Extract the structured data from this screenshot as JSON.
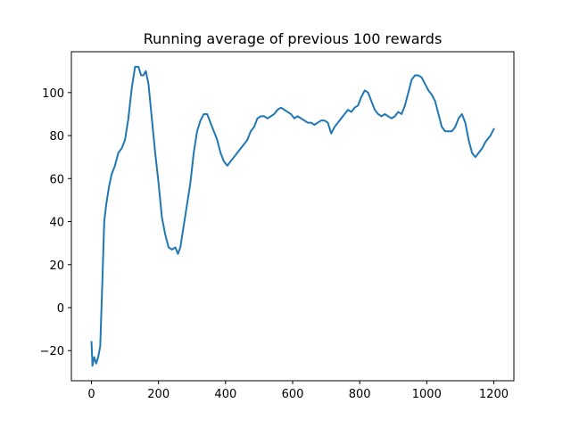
{
  "chart_data": {
    "type": "line",
    "title": "Running average of previous 100 rewards",
    "xlabel": "",
    "ylabel": "",
    "xlim": [
      -60,
      1260
    ],
    "ylim": [
      -34,
      119
    ],
    "xticks": [
      0,
      200,
      400,
      600,
      800,
      1000,
      1200
    ],
    "yticks": [
      -20,
      0,
      20,
      40,
      60,
      80,
      100
    ],
    "xtick_labels": [
      "0",
      "200",
      "400",
      "600",
      "800",
      "1000",
      "1200"
    ],
    "ytick_labels": [
      "−20",
      "0",
      "20",
      "40",
      "60",
      "80",
      "100"
    ],
    "grid": false,
    "legend": "none",
    "line_color": "#1f77b4",
    "series": [
      {
        "values": [
          [
            0,
            -16
          ],
          [
            3,
            -27
          ],
          [
            8,
            -23
          ],
          [
            14,
            -26
          ],
          [
            20,
            -23
          ],
          [
            26,
            -18
          ],
          [
            32,
            10
          ],
          [
            38,
            40
          ],
          [
            44,
            48
          ],
          [
            52,
            56
          ],
          [
            60,
            62
          ],
          [
            70,
            66
          ],
          [
            80,
            72
          ],
          [
            90,
            74
          ],
          [
            100,
            78
          ],
          [
            110,
            88
          ],
          [
            120,
            102
          ],
          [
            130,
            112
          ],
          [
            140,
            112
          ],
          [
            148,
            108
          ],
          [
            155,
            108
          ],
          [
            162,
            110
          ],
          [
            170,
            104
          ],
          [
            180,
            88
          ],
          [
            190,
            72
          ],
          [
            200,
            58
          ],
          [
            210,
            42
          ],
          [
            220,
            34
          ],
          [
            230,
            28
          ],
          [
            240,
            27
          ],
          [
            250,
            28
          ],
          [
            258,
            25
          ],
          [
            265,
            28
          ],
          [
            275,
            38
          ],
          [
            285,
            48
          ],
          [
            295,
            58
          ],
          [
            305,
            72
          ],
          [
            315,
            82
          ],
          [
            325,
            87
          ],
          [
            335,
            90
          ],
          [
            345,
            90
          ],
          [
            355,
            86
          ],
          [
            365,
            82
          ],
          [
            375,
            78
          ],
          [
            385,
            72
          ],
          [
            395,
            68
          ],
          [
            405,
            66
          ],
          [
            415,
            68
          ],
          [
            425,
            70
          ],
          [
            435,
            72
          ],
          [
            445,
            74
          ],
          [
            455,
            76
          ],
          [
            465,
            78
          ],
          [
            475,
            82
          ],
          [
            485,
            84
          ],
          [
            495,
            88
          ],
          [
            505,
            89
          ],
          [
            515,
            89
          ],
          [
            525,
            88
          ],
          [
            535,
            89
          ],
          [
            545,
            90
          ],
          [
            555,
            92
          ],
          [
            565,
            93
          ],
          [
            575,
            92
          ],
          [
            585,
            91
          ],
          [
            595,
            90
          ],
          [
            605,
            88
          ],
          [
            615,
            89
          ],
          [
            625,
            88
          ],
          [
            635,
            87
          ],
          [
            645,
            86
          ],
          [
            655,
            86
          ],
          [
            665,
            85
          ],
          [
            675,
            86
          ],
          [
            685,
            87
          ],
          [
            695,
            87
          ],
          [
            705,
            86
          ],
          [
            715,
            81
          ],
          [
            725,
            84
          ],
          [
            735,
            86
          ],
          [
            745,
            88
          ],
          [
            755,
            90
          ],
          [
            765,
            92
          ],
          [
            775,
            91
          ],
          [
            785,
            93
          ],
          [
            795,
            94
          ],
          [
            805,
            98
          ],
          [
            815,
            101
          ],
          [
            825,
            100
          ],
          [
            835,
            96
          ],
          [
            845,
            92
          ],
          [
            855,
            90
          ],
          [
            865,
            89
          ],
          [
            875,
            90
          ],
          [
            885,
            89
          ],
          [
            895,
            88
          ],
          [
            905,
            89
          ],
          [
            915,
            91
          ],
          [
            925,
            90
          ],
          [
            935,
            94
          ],
          [
            945,
            100
          ],
          [
            955,
            106
          ],
          [
            965,
            108
          ],
          [
            975,
            108
          ],
          [
            985,
            107
          ],
          [
            995,
            104
          ],
          [
            1005,
            101
          ],
          [
            1015,
            99
          ],
          [
            1025,
            96
          ],
          [
            1035,
            90
          ],
          [
            1045,
            84
          ],
          [
            1055,
            82
          ],
          [
            1065,
            82
          ],
          [
            1075,
            82
          ],
          [
            1085,
            84
          ],
          [
            1095,
            88
          ],
          [
            1105,
            90
          ],
          [
            1115,
            86
          ],
          [
            1125,
            78
          ],
          [
            1135,
            72
          ],
          [
            1145,
            70
          ],
          [
            1155,
            72
          ],
          [
            1165,
            74
          ],
          [
            1175,
            77
          ],
          [
            1185,
            79
          ],
          [
            1190,
            80
          ],
          [
            1200,
            83
          ]
        ]
      }
    ]
  }
}
